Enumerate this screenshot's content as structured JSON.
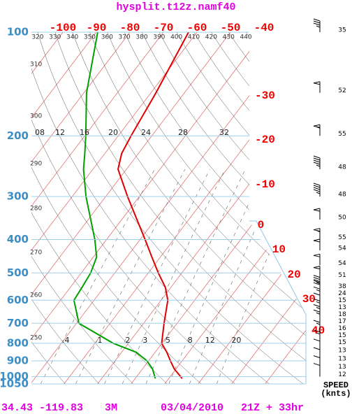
{
  "chart_data": {
    "type": "skewt",
    "title": "hysplit.t12z.namf40",
    "footer": {
      "location": "34.43 -119.83",
      "elevation": "3M",
      "date": "03/04/2010",
      "time": "21Z + 33hr"
    },
    "log_y": true,
    "ylim": [
      100,
      1050
    ],
    "yticks": [
      100,
      200,
      300,
      400,
      500,
      600,
      700,
      800,
      900,
      1000,
      1050
    ],
    "xticks": [
      -100,
      -90,
      -80,
      -70,
      -60,
      -50,
      -40,
      -30,
      -20,
      -10,
      0,
      10,
      20,
      30,
      40
    ],
    "theta_ticks": [
      250,
      260,
      270,
      280,
      290,
      300,
      310,
      320,
      330,
      340,
      350,
      360,
      370,
      380,
      390,
      400,
      410,
      420,
      430,
      440
    ],
    "mixing_ratio_ticks": [
      {
        "value": 0.4,
        "label": ".4"
      },
      1,
      2,
      3,
      5,
      8,
      12,
      20
    ],
    "upper_labels": [
      "08",
      "12",
      "16",
      "20",
      "24",
      "28",
      "32"
    ],
    "pressure": [
      100,
      150,
      200,
      225,
      250,
      300,
      400,
      450,
      500,
      550,
      600,
      700,
      800,
      850,
      900,
      950,
      1013
    ],
    "series": [
      {
        "color": "#e00000",
        "values": [
          -62.5,
          -58.5,
          -56.2,
          -55,
          -52.5,
          -43.5,
          -28.5,
          -22.5,
          -17,
          -11.7,
          -8,
          -3.9,
          -0.1,
          3.5,
          6.5,
          9.5,
          14
        ]
      },
      {
        "color": "#00a000",
        "values": [
          -89.6,
          -79.2,
          -69.7,
          -66,
          -62.8,
          -55.9,
          -43.5,
          -39,
          -37.2,
          -36.5,
          -36,
          -29.3,
          -14.6,
          -5.6,
          -0.5,
          3,
          6
        ]
      }
    ],
    "winds": {
      "label": "SPEED",
      "unit": "(knts)",
      "pressure": [
        100,
        150,
        200,
        250,
        300,
        350,
        400,
        430,
        475,
        515,
        555,
        575,
        600,
        625,
        650,
        675,
        700,
        750,
        800,
        850,
        900,
        950,
        1000
      ],
      "speed": [
        35,
        52,
        55,
        48,
        48,
        50,
        55,
        54,
        54,
        51,
        38,
        24,
        15,
        13,
        18,
        17,
        16,
        15,
        15,
        13,
        13,
        13,
        12
      ]
    }
  }
}
